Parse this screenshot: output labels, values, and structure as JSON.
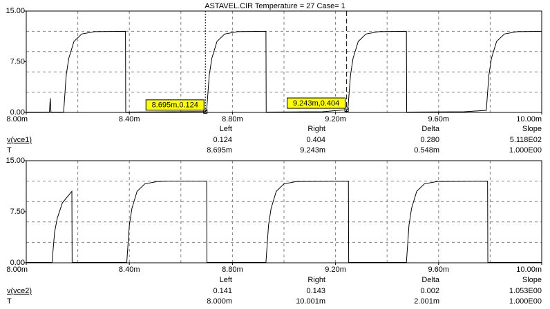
{
  "chart_data": [
    {
      "type": "line",
      "title": "ASTAVEL.CIR Temperature = 27 Case= 1",
      "series": [
        {
          "name": "v(vce1)",
          "color": "#000000",
          "x": [
            8.0,
            8.09,
            8.093,
            8.096,
            8.145,
            8.155,
            8.165,
            8.185,
            8.215,
            8.265,
            8.385,
            8.386,
            8.6,
            8.695,
            8.7,
            8.71,
            8.72,
            8.74,
            8.77,
            8.82,
            8.93,
            8.931,
            9.15,
            9.243,
            9.248,
            9.258,
            9.268,
            9.288,
            9.318,
            9.368,
            9.475,
            9.476,
            9.7,
            9.785,
            9.795,
            9.805,
            9.825,
            9.855,
            9.905,
            10.0
          ],
          "values": [
            0.05,
            0.05,
            2.1,
            0.05,
            0.05,
            5.5,
            8.0,
            10.5,
            11.6,
            11.95,
            12.0,
            0.05,
            0.1,
            0.124,
            0.3,
            5.5,
            8.0,
            10.5,
            11.6,
            11.95,
            12.0,
            0.05,
            0.1,
            0.404,
            0.5,
            5.5,
            8.0,
            10.5,
            11.6,
            11.95,
            12.0,
            0.05,
            0.1,
            0.3,
            5.5,
            8.0,
            10.5,
            11.6,
            11.95,
            12.0
          ]
        }
      ],
      "xlim": [
        8.0,
        10.0
      ],
      "xticks": [
        {
          "value": 8.0,
          "label": "8.00m"
        },
        {
          "value": 8.4,
          "label": "8.40m"
        },
        {
          "value": 8.8,
          "label": "8.80m"
        },
        {
          "value": 9.2,
          "label": "9.20m"
        },
        {
          "value": 9.6,
          "label": "9.60m"
        },
        {
          "value": 10.0,
          "label": "10.00m"
        }
      ],
      "xgrid": [
        8.2,
        8.4,
        8.6,
        8.8,
        9.0,
        9.2,
        9.4,
        9.6,
        9.8
      ],
      "ylim": [
        0,
        15
      ],
      "yticks": [
        {
          "value": 0,
          "label": "0.00"
        },
        {
          "value": 7.5,
          "label": "7.50"
        },
        {
          "value": 15,
          "label": "15.00"
        }
      ],
      "ygrid": [
        3,
        6,
        9,
        12
      ],
      "cursors": [
        {
          "x": 8.695,
          "y": 0.124,
          "label": "8.695m,0.124"
        },
        {
          "x": 9.243,
          "y": 0.404,
          "label": "9.243m,0.404"
        }
      ],
      "table": {
        "columns": [
          "Left",
          "Right",
          "Delta",
          "Slope"
        ],
        "rows": [
          {
            "cells": [
              "0.124",
              "0.404",
              "0.280",
              "5.118E02"
            ]
          },
          {
            "name": "T",
            "cells": [
              "8.695m",
              "9.243m",
              "0.548m",
              "1.000E00"
            ]
          }
        ]
      }
    },
    {
      "type": "line",
      "series": [
        {
          "name": "v(vce2)",
          "color": "#000000",
          "x": [
            8.0,
            8.1,
            8.11,
            8.12,
            8.14,
            8.177,
            8.178,
            8.39,
            8.4,
            8.41,
            8.43,
            8.46,
            8.51,
            8.55,
            8.7,
            8.701,
            8.93,
            8.94,
            8.95,
            8.97,
            9.0,
            9.05,
            9.25,
            9.251,
            9.475,
            9.485,
            9.495,
            9.515,
            9.545,
            9.595,
            9.79,
            9.791,
            10.0
          ],
          "values": [
            0.05,
            0.05,
            4.5,
            6.5,
            8.8,
            10.5,
            0.05,
            0.05,
            5.5,
            8.0,
            10.5,
            11.6,
            11.95,
            12.0,
            12.0,
            0.05,
            0.05,
            5.5,
            8.0,
            10.5,
            11.6,
            11.95,
            12.0,
            0.05,
            0.05,
            5.5,
            8.0,
            10.5,
            11.6,
            11.95,
            12.0,
            0.05,
            0.05
          ]
        }
      ],
      "xlim": [
        8.0,
        10.0
      ],
      "xticks": [
        {
          "value": 8.0,
          "label": "8.00m"
        },
        {
          "value": 8.4,
          "label": "8.40m"
        },
        {
          "value": 8.8,
          "label": "8.80m"
        },
        {
          "value": 9.2,
          "label": "9.20m"
        },
        {
          "value": 9.6,
          "label": "9.60m"
        },
        {
          "value": 10.0,
          "label": "10.00m"
        }
      ],
      "xgrid": [
        8.2,
        8.4,
        8.6,
        8.8,
        9.0,
        9.2,
        9.4,
        9.6,
        9.8
      ],
      "ylim": [
        0,
        15
      ],
      "yticks": [
        {
          "value": 0,
          "label": "0.00"
        },
        {
          "value": 7.5,
          "label": "7.50"
        },
        {
          "value": 15,
          "label": "15.00"
        }
      ],
      "ygrid": [
        3,
        6,
        9,
        12
      ],
      "table": {
        "columns": [
          "Left",
          "Right",
          "Delta",
          "Slope"
        ],
        "rows": [
          {
            "cells": [
              "0.141",
              "0.143",
              "0.002",
              "1.053E00"
            ]
          },
          {
            "name": "T",
            "cells": [
              "8.000m",
              "10.001m",
              "2.001m",
              "1.000E00"
            ]
          }
        ]
      }
    }
  ]
}
